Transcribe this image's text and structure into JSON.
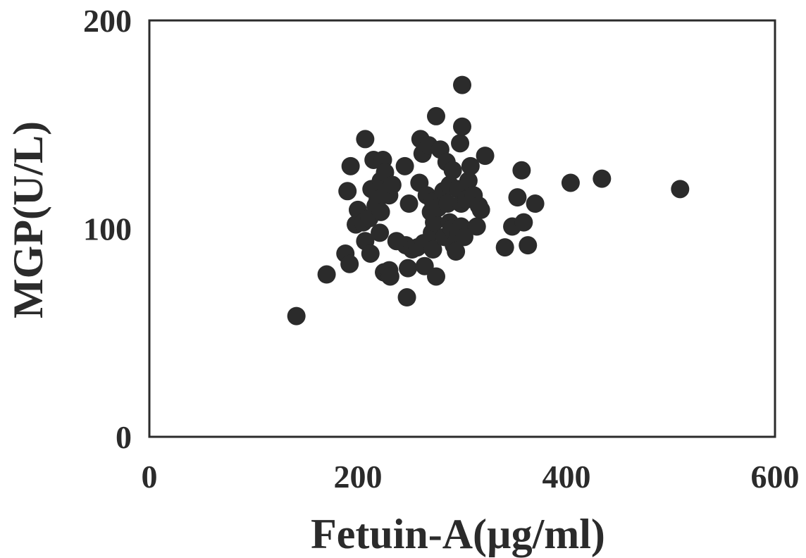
{
  "chart_data": {
    "type": "scatter",
    "title": "",
    "xlabel": "Fetuin-A(µg/ml)",
    "ylabel": "MGP(U/L)",
    "xlim": [
      0,
      600
    ],
    "ylim": [
      0,
      200
    ],
    "xticks": [
      "0",
      "200",
      "400",
      "600"
    ],
    "yticks": [
      "0",
      "100",
      "200"
    ],
    "grid": false,
    "legend": "none",
    "marker_color": "#2b2b2b",
    "series": [
      {
        "points": [
          [
            141,
            58
          ],
          [
            170,
            78
          ],
          [
            188,
            88
          ],
          [
            190,
            118
          ],
          [
            192,
            83
          ],
          [
            193,
            130
          ],
          [
            198,
            102
          ],
          [
            200,
            109
          ],
          [
            205,
            103
          ],
          [
            207,
            94
          ],
          [
            207,
            143
          ],
          [
            211,
            105
          ],
          [
            212,
            88
          ],
          [
            213,
            119
          ],
          [
            215,
            133
          ],
          [
            217,
            111
          ],
          [
            219,
            114
          ],
          [
            221,
            98
          ],
          [
            222,
            108
          ],
          [
            222,
            123
          ],
          [
            224,
            133
          ],
          [
            225,
            79
          ],
          [
            226,
            127
          ],
          [
            228,
            118
          ],
          [
            230,
            80
          ],
          [
            230,
            116
          ],
          [
            231,
            77
          ],
          [
            233,
            121
          ],
          [
            237,
            94
          ],
          [
            246,
            92
          ],
          [
            245,
            130
          ],
          [
            247,
            67
          ],
          [
            248,
            81
          ],
          [
            249,
            112
          ],
          [
            252,
            90
          ],
          [
            257,
            91
          ],
          [
            259,
            122
          ],
          [
            260,
            143
          ],
          [
            262,
            136
          ],
          [
            263,
            93
          ],
          [
            264,
            82
          ],
          [
            266,
            116
          ],
          [
            268,
            140
          ],
          [
            270,
            108
          ],
          [
            271,
            98
          ],
          [
            272,
            90
          ],
          [
            272,
            113
          ],
          [
            273,
            103
          ],
          [
            275,
            77
          ],
          [
            275,
            154
          ],
          [
            277,
            110
          ],
          [
            279,
            138
          ],
          [
            282,
            118
          ],
          [
            283,
            96
          ],
          [
            285,
            132
          ],
          [
            286,
            112
          ],
          [
            288,
            121
          ],
          [
            288,
            103
          ],
          [
            290,
            100
          ],
          [
            291,
            128
          ],
          [
            292,
            92
          ],
          [
            294,
            89
          ],
          [
            296,
            119
          ],
          [
            296,
            98
          ],
          [
            298,
            141
          ],
          [
            299,
            112
          ],
          [
            299,
            101
          ],
          [
            300,
            149
          ],
          [
            300,
            169
          ],
          [
            302,
            96
          ],
          [
            304,
            114
          ],
          [
            306,
            123
          ],
          [
            308,
            130
          ],
          [
            311,
            116
          ],
          [
            314,
            101
          ],
          [
            316,
            111
          ],
          [
            318,
            109
          ],
          [
            322,
            135
          ],
          [
            341,
            91
          ],
          [
            348,
            101
          ],
          [
            353,
            115
          ],
          [
            357,
            128
          ],
          [
            359,
            103
          ],
          [
            363,
            92
          ],
          [
            370,
            112
          ],
          [
            404,
            122
          ],
          [
            434,
            124
          ],
          [
            509,
            119
          ]
        ]
      }
    ]
  }
}
